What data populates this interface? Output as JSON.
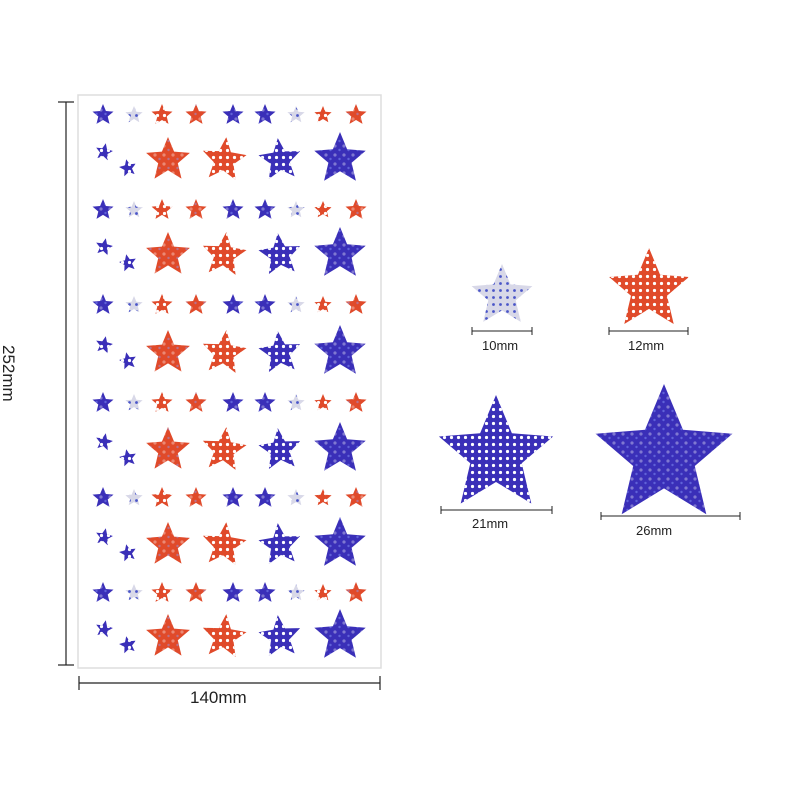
{
  "dimensions": {
    "sheet_width": "140mm",
    "sheet_height": "252mm"
  },
  "sizes": [
    {
      "label": "10mm",
      "pattern": "dotted-white",
      "color": "#d8d8e8"
    },
    {
      "label": "12mm",
      "pattern": "dotted",
      "color": "#e04a2a"
    },
    {
      "label": "21mm",
      "pattern": "dotted",
      "color": "#3a2fb8"
    },
    {
      "label": "26mm",
      "pattern": "holographic",
      "color": "#3b35c8"
    }
  ],
  "colors": {
    "blue": "#3a2fb8",
    "red": "#e04a2a",
    "white": "#d8d8e8",
    "sheet_border": "#dddddd",
    "dim_line": "#222222"
  }
}
